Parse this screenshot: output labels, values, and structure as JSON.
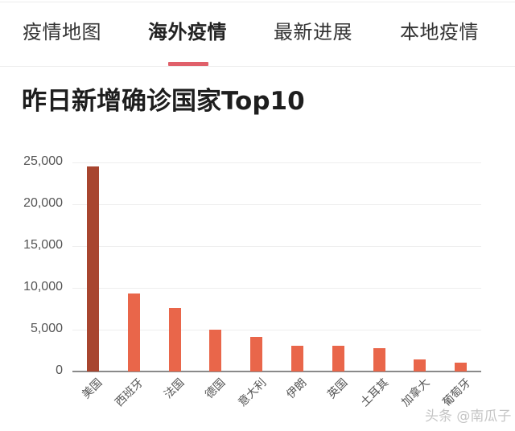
{
  "tabs": [
    {
      "label": "疫情地图",
      "active": false
    },
    {
      "label": "海外疫情",
      "active": true
    },
    {
      "label": "最新进展",
      "active": false
    },
    {
      "label": "本地疫情",
      "active": false
    }
  ],
  "colors": {
    "tab_indicator": "#e0606a",
    "bar_highlight": "#a8452f",
    "bar_default": "#e9664a",
    "gridline": "#eeeeee",
    "axis": "#8a8a8a"
  },
  "chart_title": "昨日新增确诊国家Top10",
  "watermark": "头条 @南瓜子",
  "chart_data": {
    "type": "bar",
    "title": "昨日新增确诊国家Top10",
    "xlabel": "",
    "ylabel": "",
    "categories": [
      "美国",
      "西班牙",
      "法国",
      "德国",
      "意大利",
      "伊朗",
      "英国",
      "土耳其",
      "加拿大",
      "葡萄牙"
    ],
    "values": [
      24500,
      9300,
      7600,
      5000,
      4100,
      3100,
      3050,
      2750,
      1400,
      1050
    ],
    "ylim": [
      0,
      25000
    ],
    "yticks": [
      0,
      5000,
      10000,
      15000,
      20000,
      25000
    ],
    "ytick_labels": [
      "0",
      "5,000",
      "10,000",
      "15,000",
      "20,000",
      "25,000"
    ],
    "grid": true,
    "legend": null,
    "highlight_index": 0
  }
}
